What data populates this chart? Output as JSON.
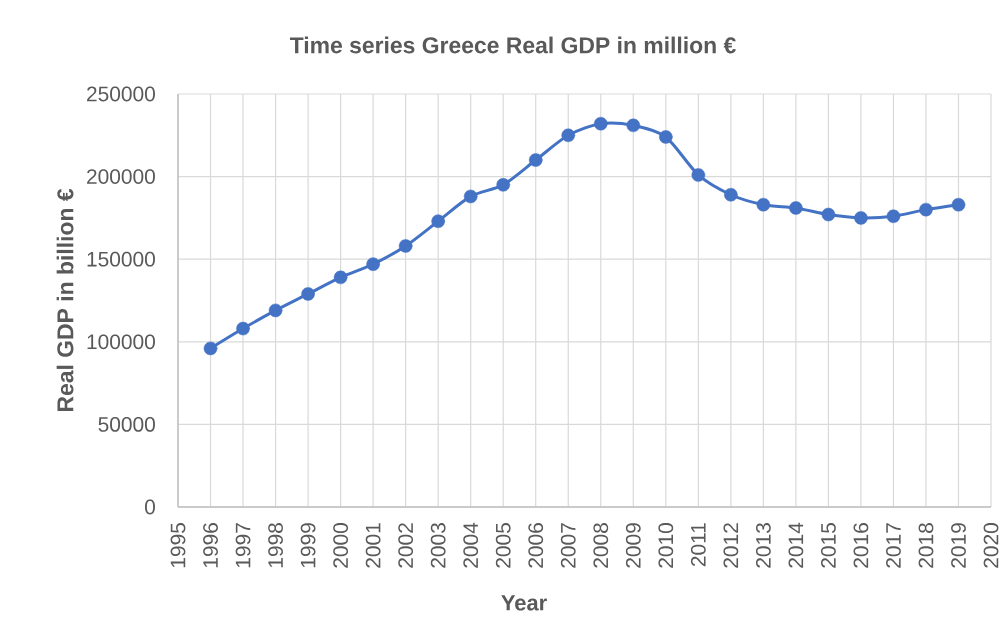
{
  "chart_data": {
    "type": "line",
    "title": "Time series Greece Real GDP in million €",
    "xlabel": "Year",
    "ylabel": "Real GDP in billion €",
    "x": [
      1996,
      1997,
      1998,
      1999,
      2000,
      2001,
      2002,
      2003,
      2004,
      2005,
      2006,
      2007,
      2008,
      2009,
      2010,
      2011,
      2012,
      2013,
      2014,
      2015,
      2016,
      2017,
      2018,
      2019
    ],
    "series": [
      {
        "color": "#4472c4",
        "values": [
          96000,
          108000,
          119000,
          129000,
          139000,
          147000,
          158000,
          173000,
          188000,
          195000,
          210000,
          225000,
          232000,
          231000,
          224000,
          201000,
          189000,
          183000,
          181000,
          177000,
          175000,
          176000,
          180000,
          183000
        ]
      }
    ],
    "xlim": [
      1995,
      2020
    ],
    "ylim": [
      0,
      250000
    ],
    "xticks": [
      1995,
      1996,
      1997,
      1998,
      1999,
      2000,
      2001,
      2002,
      2003,
      2004,
      2005,
      2006,
      2007,
      2008,
      2009,
      2010,
      2011,
      2012,
      2013,
      2014,
      2015,
      2016,
      2017,
      2018,
      2019,
      2020
    ],
    "yticks": [
      0,
      50000,
      100000,
      150000,
      200000,
      250000
    ],
    "grid": true,
    "marker": "circle",
    "line_style": "solid"
  }
}
